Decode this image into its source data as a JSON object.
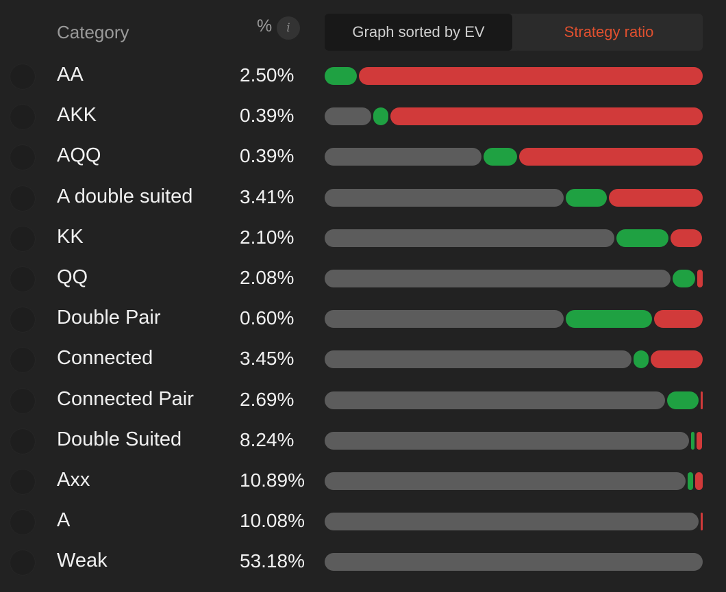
{
  "header": {
    "category_label": "Category",
    "percent_label": "%",
    "info_icon": "i",
    "tabs": [
      {
        "label": "Graph sorted by EV",
        "active": true
      },
      {
        "label": "Strategy ratio",
        "active": false
      }
    ]
  },
  "colors": {
    "background": "#222222",
    "neutral": "#5c5c5c",
    "green": "#1fa142",
    "red": "#d13a3a",
    "accent": "#e0502f"
  },
  "rows": [
    {
      "name": "AA",
      "percent": "2.50%",
      "ratio": {
        "gray": 0.0,
        "green": 0.085,
        "red": 0.915
      }
    },
    {
      "name": "AKK",
      "percent": "0.39%",
      "ratio": {
        "gray": 0.125,
        "green": 0.04,
        "red": 0.835
      }
    },
    {
      "name": "AQQ",
      "percent": "0.39%",
      "ratio": {
        "gray": 0.42,
        "green": 0.09,
        "red": 0.49
      }
    },
    {
      "name": "A double suited",
      "percent": "3.41%",
      "ratio": {
        "gray": 0.64,
        "green": 0.11,
        "red": 0.25
      }
    },
    {
      "name": "KK",
      "percent": "2.10%",
      "ratio": {
        "gray": 0.775,
        "green": 0.14,
        "red": 0.085
      }
    },
    {
      "name": "QQ",
      "percent": "2.08%",
      "ratio": {
        "gray": 0.925,
        "green": 0.06,
        "red": 0.015
      }
    },
    {
      "name": "Double Pair",
      "percent": "0.60%",
      "ratio": {
        "gray": 0.64,
        "green": 0.23,
        "red": 0.13
      }
    },
    {
      "name": "Connected",
      "percent": "3.45%",
      "ratio": {
        "gray": 0.82,
        "green": 0.04,
        "red": 0.14
      }
    },
    {
      "name": "Connected Pair",
      "percent": "2.69%",
      "ratio": {
        "gray": 0.91,
        "green": 0.085,
        "red": 0.005
      }
    },
    {
      "name": "Double Suited",
      "percent": "8.24%",
      "ratio": {
        "gray": 0.975,
        "green": 0.01,
        "red": 0.015
      }
    },
    {
      "name": "Axx",
      "percent": "10.89%",
      "ratio": {
        "gray": 0.965,
        "green": 0.015,
        "red": 0.02
      }
    },
    {
      "name": "A",
      "percent": "10.08%",
      "ratio": {
        "gray": 0.995,
        "green": 0.0,
        "red": 0.005
      }
    },
    {
      "name": "Weak",
      "percent": "53.18%",
      "ratio": {
        "gray": 1.0,
        "green": 0.0,
        "red": 0.0
      }
    }
  ]
}
